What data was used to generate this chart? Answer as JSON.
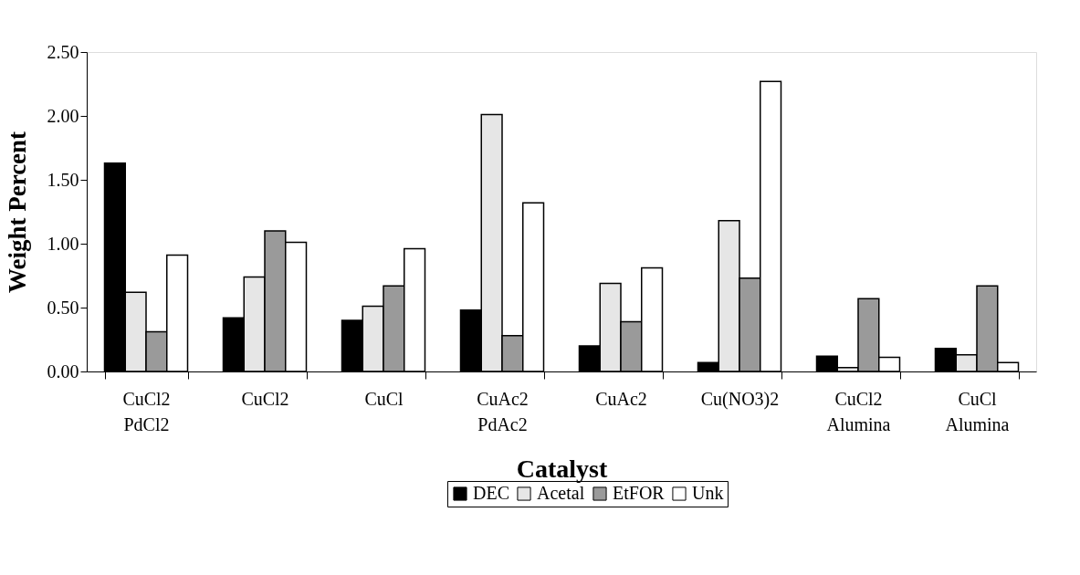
{
  "chart_data": {
    "type": "bar",
    "xlabel": "Catalyst",
    "ylabel": "Weight Percent",
    "categories": [
      "CuCl2\nPdCl2",
      "CuCl2",
      "CuCl",
      "CuAc2\nPdAc2",
      "CuAc2",
      "Cu(NO3)2",
      "CuCl2\nAlumina",
      "CuCl\nAlumina"
    ],
    "series": [
      {
        "name": "DEC",
        "color": "#000000",
        "values": [
          1.63,
          0.42,
          0.4,
          0.48,
          0.2,
          0.07,
          0.12,
          0.18
        ]
      },
      {
        "name": "Acetal",
        "color": "#e6e6e6",
        "values": [
          0.62,
          0.74,
          0.51,
          2.01,
          0.69,
          1.18,
          0.03,
          0.13
        ]
      },
      {
        "name": "EtFOR",
        "color": "#9a9a9a",
        "values": [
          0.31,
          1.1,
          0.67,
          0.28,
          0.39,
          0.73,
          0.57,
          0.67
        ]
      },
      {
        "name": "Unk",
        "color": "#ffffff",
        "values": [
          0.91,
          1.01,
          0.96,
          1.32,
          0.81,
          2.27,
          0.11,
          0.07
        ]
      }
    ],
    "ylim": [
      0,
      2.5
    ],
    "yticks": [
      {
        "value": 0,
        "label": "0.00"
      },
      {
        "value": 0.5,
        "label": "0.50"
      },
      {
        "value": 1,
        "label": "1.00"
      },
      {
        "value": 1.5,
        "label": "1.50"
      },
      {
        "value": 2,
        "label": "2.00"
      },
      {
        "value": 2.5,
        "label": "2.50"
      }
    ],
    "grid": false,
    "legend": "bottom"
  }
}
